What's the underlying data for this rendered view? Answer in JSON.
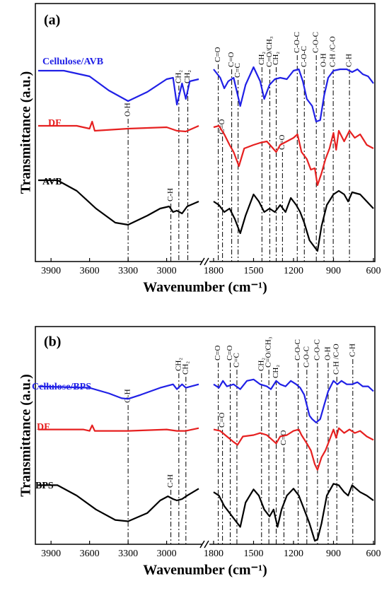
{
  "chart_data": [
    {
      "type": "line",
      "panel_label": "(a)",
      "x_label": "Wavenumber (cm⁻¹)",
      "y_label": "Transmittance (a.u.)",
      "xlim": [
        4000,
        600
      ],
      "x_break": [
        2750,
        1800
      ],
      "xticks": [
        3900,
        3600,
        3300,
        3000,
        1800,
        1500,
        1200,
        900,
        600
      ],
      "ylim": [
        0,
        365
      ],
      "series": [
        {
          "name": "Cellulose/AVB",
          "color": "#2020e6",
          "x": [
            4000,
            3800,
            3600,
            3450,
            3300,
            3150,
            3000,
            2950,
            2920,
            2880,
            2850,
            2820,
            2750,
            1800,
            1750,
            1720,
            1690,
            1650,
            1600,
            1560,
            1500,
            1450,
            1420,
            1380,
            1340,
            1300,
            1250,
            1200,
            1160,
            1130,
            1100,
            1060,
            1030,
            1000,
            970,
            940,
            900,
            850,
            800,
            760,
            720,
            680,
            640,
            600
          ],
          "values": [
            270,
            270,
            262,
            242,
            227,
            240,
            258,
            260,
            222,
            252,
            230,
            255,
            258,
            272,
            260,
            245,
            255,
            260,
            220,
            250,
            275,
            255,
            230,
            250,
            258,
            260,
            258,
            270,
            272,
            255,
            230,
            220,
            198,
            200,
            235,
            260,
            270,
            272,
            272,
            268,
            272,
            265,
            262,
            252
          ]
        },
        {
          "name": "DF",
          "color": "#e62020",
          "x": [
            4000,
            3700,
            3600,
            3580,
            3560,
            3300,
            3000,
            2920,
            2850,
            2750,
            1800,
            1760,
            1720,
            1680,
            1650,
            1610,
            1570,
            1500,
            1450,
            1400,
            1330,
            1300,
            1250,
            1200,
            1170,
            1140,
            1100,
            1070,
            1040,
            1020,
            990,
            960,
            930,
            900,
            880,
            860,
            820,
            780,
            740,
            700,
            650,
            600
          ],
          "values": [
            192,
            192,
            188,
            198,
            185,
            188,
            190,
            185,
            184,
            192,
            190,
            192,
            180,
            165,
            155,
            135,
            160,
            165,
            168,
            170,
            155,
            165,
            170,
            175,
            180,
            155,
            145,
            130,
            132,
            108,
            125,
            145,
            160,
            182,
            158,
            185,
            170,
            185,
            175,
            180,
            165,
            160
          ]
        },
        {
          "name": "AVB",
          "color": "#000000",
          "x": [
            4000,
            3850,
            3700,
            3550,
            3400,
            3300,
            3150,
            3050,
            2980,
            2950,
            2920,
            2880,
            2840,
            2750,
            1800,
            1760,
            1720,
            1680,
            1640,
            1600,
            1560,
            1500,
            1460,
            1420,
            1380,
            1340,
            1300,
            1260,
            1220,
            1180,
            1150,
            1120,
            1080,
            1040,
            1020,
            990,
            950,
            900,
            860,
            820,
            790,
            760,
            700,
            650,
            600
          ],
          "values": [
            115,
            115,
            100,
            75,
            55,
            52,
            65,
            75,
            78,
            70,
            72,
            68,
            78,
            85,
            85,
            80,
            70,
            75,
            60,
            40,
            65,
            95,
            85,
            70,
            75,
            70,
            80,
            70,
            90,
            80,
            70,
            55,
            30,
            20,
            15,
            50,
            80,
            95,
            100,
            95,
            85,
            98,
            95,
            85,
            75
          ]
        }
      ],
      "annotations": [
        {
          "x": 3300,
          "label": "O-H"
        },
        {
          "x": 2967,
          "label": "C-H"
        },
        {
          "x": 2905,
          "label": "CH₂"
        },
        {
          "x": 2835,
          "label": "CH₂"
        },
        {
          "x": 1765,
          "label": "C=O"
        },
        {
          "x": 1733,
          "label": "C=O"
        },
        {
          "x": 1664,
          "label": "C=O"
        },
        {
          "x": 1616,
          "label": "C=C"
        },
        {
          "x": 1437,
          "label": "CH₂"
        },
        {
          "x": 1378,
          "label": "C=O/CH₃"
        },
        {
          "x": 1330,
          "label": "CH₂"
        },
        {
          "x": 1283,
          "label": "C=O"
        },
        {
          "x": 1172,
          "label": "C-O-C"
        },
        {
          "x": 1119,
          "label": "C-O-C"
        },
        {
          "x": 1029,
          "label": "C-O-C"
        },
        {
          "x": 971,
          "label": "O-H"
        },
        {
          "x": 902,
          "label": "C-H /C-O"
        },
        {
          "x": 780,
          "label": "C-H"
        }
      ]
    },
    {
      "type": "line",
      "panel_label": "(b)",
      "x_label": "Wavenumber (cm⁻¹)",
      "y_label": "Transmittance (a.u.)",
      "xlim": [
        4000,
        600
      ],
      "x_break": [
        2750,
        1800
      ],
      "xticks": [
        3900,
        3600,
        3300,
        3000,
        1800,
        1500,
        1200,
        900,
        600
      ],
      "ylim": [
        -5,
        308
      ],
      "series": [
        {
          "name": "Cellulose/BPS",
          "color": "#2020e6",
          "x": [
            4000,
            3600,
            3450,
            3350,
            3300,
            3200,
            3050,
            2950,
            2920,
            2880,
            2850,
            2750,
            1800,
            1760,
            1730,
            1700,
            1650,
            1600,
            1550,
            1500,
            1450,
            1400,
            1370,
            1330,
            1300,
            1260,
            1220,
            1180,
            1150,
            1120,
            1100,
            1080,
            1060,
            1030,
            1000,
            970,
            940,
            900,
            870,
            840,
            800,
            760,
            720,
            680,
            640,
            600
          ],
          "values": [
            222,
            220,
            212,
            205,
            204,
            210,
            220,
            225,
            218,
            225,
            220,
            225,
            225,
            220,
            230,
            222,
            225,
            218,
            230,
            232,
            225,
            222,
            218,
            230,
            225,
            222,
            230,
            225,
            220,
            210,
            195,
            180,
            175,
            170,
            175,
            195,
            215,
            230,
            225,
            230,
            225,
            225,
            228,
            222,
            222,
            215
          ]
        },
        {
          "name": "DF",
          "color": "#e62020",
          "x": [
            4000,
            3650,
            3600,
            3580,
            3560,
            3300,
            3000,
            2920,
            2850,
            2750,
            1800,
            1750,
            1700,
            1650,
            1620,
            1580,
            1500,
            1450,
            1400,
            1330,
            1300,
            1250,
            1200,
            1160,
            1140,
            1100,
            1070,
            1040,
            1020,
            990,
            960,
            930,
            900,
            880,
            860,
            820,
            780,
            740,
            700,
            650,
            600
          ],
          "values": [
            160,
            160,
            158,
            166,
            158,
            158,
            160,
            158,
            158,
            162,
            160,
            158,
            150,
            142,
            138,
            150,
            152,
            155,
            152,
            140,
            150,
            152,
            158,
            160,
            152,
            140,
            130,
            110,
            102,
            120,
            130,
            145,
            160,
            148,
            162,
            155,
            160,
            155,
            158,
            150,
            145
          ]
        },
        {
          "name": "BPS",
          "color": "#000000",
          "x": [
            4000,
            3850,
            3700,
            3550,
            3400,
            3300,
            3150,
            3050,
            2990,
            2950,
            2920,
            2880,
            2840,
            2750,
            1800,
            1760,
            1720,
            1680,
            1640,
            1600,
            1560,
            1500,
            1460,
            1420,
            1380,
            1350,
            1320,
            1290,
            1250,
            1200,
            1160,
            1120,
            1080,
            1040,
            1020,
            990,
            950,
            900,
            860,
            820,
            790,
            760,
            700,
            650,
            600
          ],
          "values": [
            80,
            80,
            65,
            45,
            30,
            28,
            40,
            58,
            64,
            60,
            58,
            60,
            65,
            75,
            70,
            65,
            50,
            40,
            30,
            20,
            55,
            74,
            65,
            45,
            35,
            45,
            20,
            45,
            65,
            75,
            65,
            45,
            25,
            0,
            2,
            25,
            65,
            82,
            80,
            70,
            65,
            80,
            70,
            65,
            58
          ]
        }
      ],
      "annotations": [
        {
          "x": 3300,
          "label": "O-H"
        },
        {
          "x": 2967,
          "label": "C-H"
        },
        {
          "x": 2905,
          "label": "CH₂"
        },
        {
          "x": 2850,
          "label": "CH₂"
        },
        {
          "x": 1765,
          "label": "C=O"
        },
        {
          "x": 1733,
          "label": "C=O"
        },
        {
          "x": 1675,
          "label": "C=O"
        },
        {
          "x": 1625,
          "label": "C=C"
        },
        {
          "x": 1440,
          "label": "CH₂"
        },
        {
          "x": 1385,
          "label": "C=O/CH₃"
        },
        {
          "x": 1330,
          "label": "CH₂"
        },
        {
          "x": 1272,
          "label": "C=O"
        },
        {
          "x": 1165,
          "label": "C-O-C"
        },
        {
          "x": 1100,
          "label": "C-O-C"
        },
        {
          "x": 1020,
          "label": "C-O-C"
        },
        {
          "x": 940,
          "label": "O-H"
        },
        {
          "x": 875,
          "label": "C-H /C-O"
        },
        {
          "x": 755,
          "label": "C-H"
        }
      ]
    }
  ]
}
